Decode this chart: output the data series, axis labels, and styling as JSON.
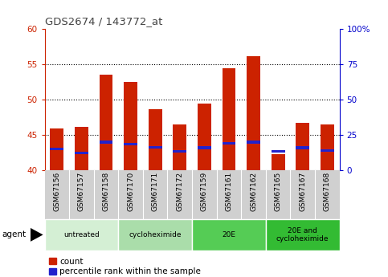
{
  "title": "GDS2674 / 143772_at",
  "samples": [
    "GSM67156",
    "GSM67157",
    "GSM67158",
    "GSM67170",
    "GSM67171",
    "GSM67172",
    "GSM67159",
    "GSM67161",
    "GSM67162",
    "GSM67165",
    "GSM67167",
    "GSM67168"
  ],
  "count_values": [
    45.9,
    46.2,
    53.5,
    52.5,
    48.7,
    46.5,
    49.4,
    54.4,
    56.2,
    42.3,
    46.7,
    46.5
  ],
  "percentile_values": [
    43.0,
    42.5,
    44.0,
    43.7,
    43.3,
    42.7,
    43.2,
    43.8,
    44.0,
    42.7,
    43.2,
    42.8
  ],
  "ylim": [
    40,
    60
  ],
  "y2lim": [
    0,
    100
  ],
  "yticks": [
    40,
    45,
    50,
    55,
    60
  ],
  "y2ticks": [
    0,
    25,
    50,
    75,
    100
  ],
  "bar_color": "#cc2200",
  "percentile_color": "#2222cc",
  "bar_width": 0.55,
  "groups": [
    {
      "label": "untreated",
      "start": 0,
      "end": 3,
      "color": "#d4efd4"
    },
    {
      "label": "cycloheximide",
      "start": 3,
      "end": 6,
      "color": "#aaddaa"
    },
    {
      "label": "20E",
      "start": 6,
      "end": 9,
      "color": "#55cc55"
    },
    {
      "label": "20E and\ncycloheximide",
      "start": 9,
      "end": 12,
      "color": "#33bb33"
    }
  ],
  "legend_count_label": "count",
  "legend_pct_label": "percentile rank within the sample",
  "title_color": "#444444",
  "left_axis_color": "#cc2200",
  "right_axis_color": "#0000cc",
  "xtick_bg_color": "#d0d0d0",
  "agent_label": "agent"
}
